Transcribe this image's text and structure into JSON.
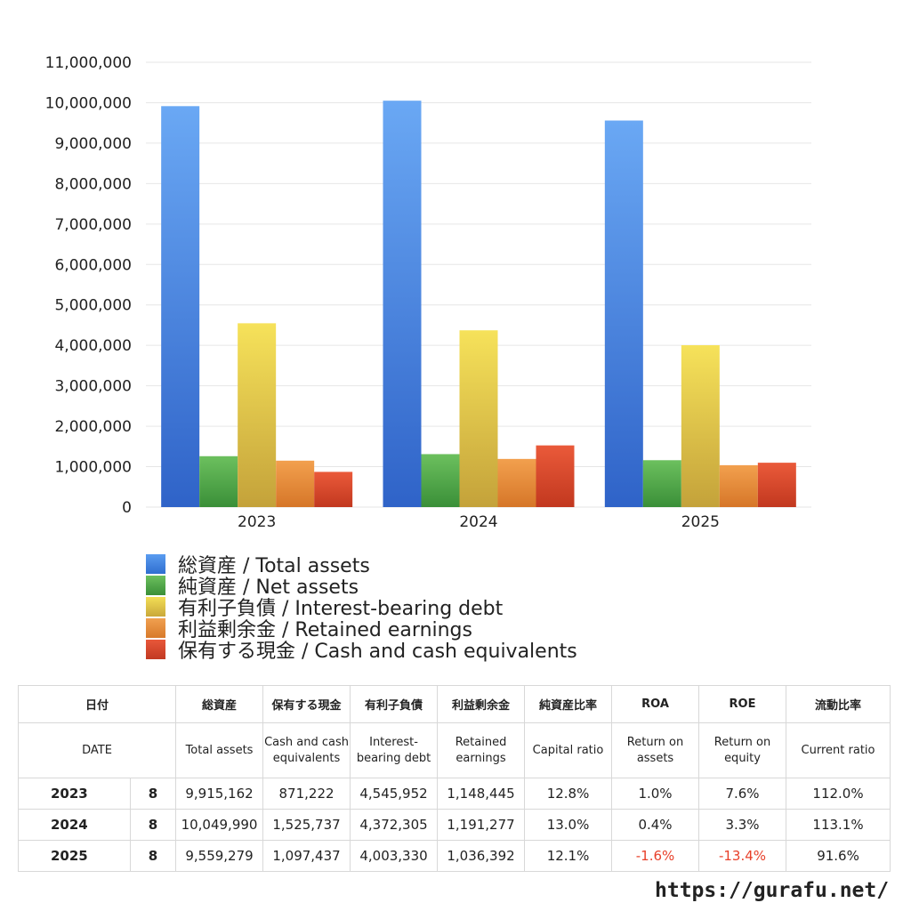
{
  "chart_data": {
    "type": "bar",
    "categories": [
      "2023",
      "2024",
      "2025"
    ],
    "ylim": [
      0,
      11000000
    ],
    "yticks": [
      "0",
      "1,000,000",
      "2,000,000",
      "3,000,000",
      "4,000,000",
      "5,000,000",
      "6,000,000",
      "7,000,000",
      "8,000,000",
      "9,000,000",
      "10,000,000",
      "11,000,000"
    ],
    "grid": true,
    "legend_position": "bottom",
    "series": [
      {
        "name": "総資産 / Total assets",
        "color": "#4a8ee8",
        "values": [
          9915162,
          10049990,
          9559279
        ]
      },
      {
        "name": "純資産 / Net assets",
        "color": "#4fa94a",
        "values": [
          1259000,
          1310000,
          1160000
        ]
      },
      {
        "name": "有利子負債 / Interest-bearing debt",
        "color": "#e6cd45",
        "values": [
          4545952,
          4372305,
          4003330
        ]
      },
      {
        "name": "利益剰余金 / Retained earnings",
        "color": "#e68a3a",
        "values": [
          1148445,
          1191277,
          1036392
        ]
      },
      {
        "name": "保有する現金 /  Cash and cash equivalents",
        "color": "#d9472a",
        "values": [
          871222,
          1525737,
          1097437
        ]
      }
    ]
  },
  "table": {
    "headers_jp": [
      "日付",
      "総資産",
      "保有する現金",
      "有利子負債",
      "利益剰余金",
      "純資産比率",
      "ROA",
      "ROE",
      "流動比率"
    ],
    "headers_en": [
      "DATE",
      "Total assets",
      "Cash and cash equivalents",
      "Interest-bearing debt",
      "Retained earnings",
      "Capital ratio",
      "Return on assets",
      "Return on equity",
      "Current ratio"
    ],
    "rows": [
      {
        "year": "2023",
        "month": "8",
        "total_assets": "9,915,162",
        "cash": "871,222",
        "debt": "4,545,952",
        "retained": "1,148,445",
        "capital_ratio": "12.8%",
        "roa": "1.0%",
        "roe": "7.6%",
        "current_ratio": "112.0%"
      },
      {
        "year": "2024",
        "month": "8",
        "total_assets": "10,049,990",
        "cash": "1,525,737",
        "debt": "4,372,305",
        "retained": "1,191,277",
        "capital_ratio": "13.0%",
        "roa": "0.4%",
        "roe": "3.3%",
        "current_ratio": "113.1%"
      },
      {
        "year": "2025",
        "month": "8",
        "total_assets": "9,559,279",
        "cash": "1,097,437",
        "debt": "4,003,330",
        "retained": "1,036,392",
        "capital_ratio": "12.1%",
        "roa": "-1.6%",
        "roe": "-13.4%",
        "current_ratio": "91.6%"
      }
    ],
    "negative_color": "#e8402a"
  },
  "site": "https://gurafu.net/"
}
